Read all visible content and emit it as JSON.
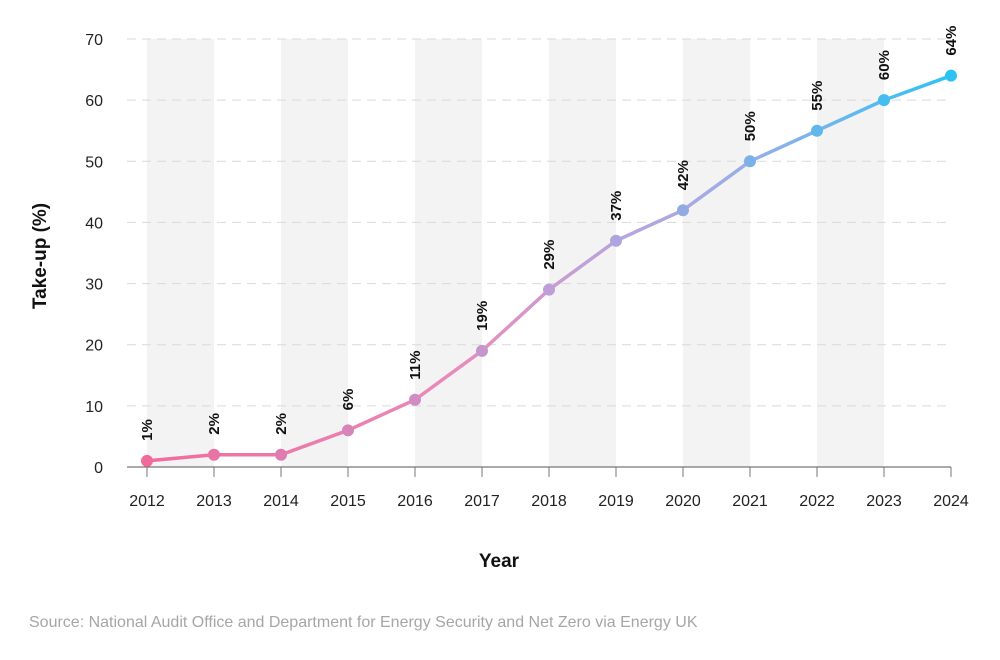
{
  "chart_data": {
    "type": "line",
    "title": "",
    "xlabel": "Year",
    "ylabel": "Take-up (%)",
    "x": [
      "2012",
      "2013",
      "2014",
      "2015",
      "2016",
      "2017",
      "2018",
      "2019",
      "2020",
      "2021",
      "2022",
      "2023",
      "2024"
    ],
    "series": [
      {
        "values": [
          1,
          2,
          2,
          6,
          11,
          19,
          29,
          37,
          42,
          50,
          55,
          60,
          64
        ]
      }
    ],
    "data_labels": [
      "1%",
      "2%",
      "2%",
      "6%",
      "11%",
      "19%",
      "29%",
      "37%",
      "42%",
      "50%",
      "55%",
      "60%",
      "64%"
    ],
    "ylim": [
      0,
      70
    ],
    "yticks": [
      0,
      10,
      20,
      30,
      40,
      50,
      60,
      70
    ],
    "grid": "horizontal dashed",
    "alternating_bands": true,
    "colors": {
      "start": "#f06b9b",
      "middle": "#b9a3dc",
      "end": "#2cc3f3",
      "band": "#f3f3f3",
      "grid": "#d9d9d9"
    }
  },
  "source": "Source: National Audit Office and Department for Energy Security and Net Zero via Energy UK"
}
